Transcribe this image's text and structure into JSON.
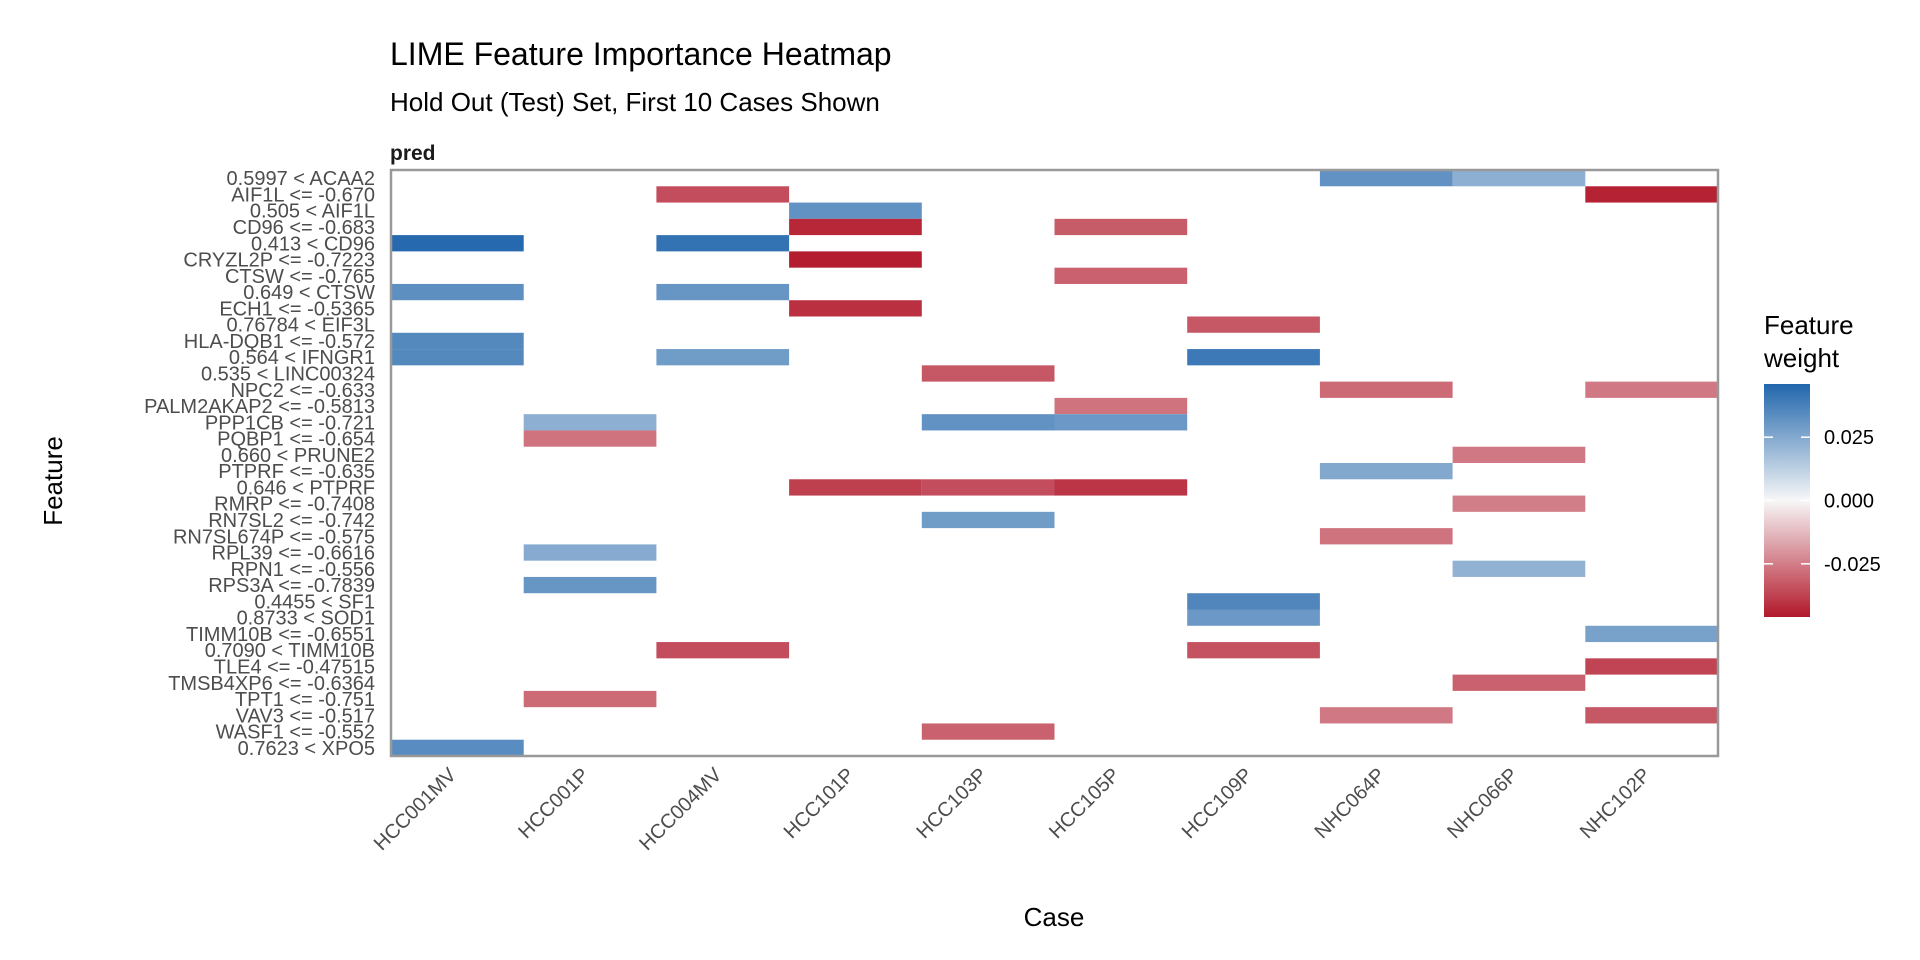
{
  "chart_data": {
    "type": "heatmap",
    "title": "LIME Feature Importance Heatmap",
    "subtitle": "Hold Out (Test) Set, First 10 Cases Shown",
    "facet_label": "pred",
    "xlabel": "Case",
    "ylabel": "Feature",
    "legend": {
      "title_lines": [
        "Feature",
        "weight"
      ],
      "ticks": [
        0.025,
        0.0,
        -0.025
      ],
      "tick_labels": [
        "0.025",
        "0.000",
        "-0.025"
      ],
      "range": [
        -0.046,
        0.046
      ],
      "colors": {
        "low": "#b2182b",
        "mid": "#f7f7f7",
        "high": "#2166ac"
      },
      "position": "right"
    },
    "cases": [
      "HCC001MV",
      "HCC001P",
      "HCC004MV",
      "HCC101P",
      "HCC103P",
      "HCC105P",
      "HCC109P",
      "NHC064P",
      "NHC066P",
      "NHC102P"
    ],
    "features": [
      "0.5997 < ACAA2",
      "AIF1L <= -0.670",
      "0.505 < AIF1L",
      "CD96 <= -0.683",
      "0.413 < CD96",
      "CRYZL2P <= -0.7223",
      "CTSW <= -0.765",
      "0.649 < CTSW",
      "ECH1 <= -0.5365",
      "0.76784 < EIF3L",
      "HLA-DQB1 <= -0.572",
      "0.564 < IFNGR1",
      "0.535 < LINC00324",
      "NPC2 <= -0.633",
      "PALM2AKAP2 <= -0.5813",
      "PPP1CB <= -0.721",
      "PQBP1 <= -0.654",
      "0.660 < PRUNE2",
      "PTPRF <= -0.635",
      "0.646 < PTPRF",
      "RMRP <= -0.7408",
      "RN7SL2 <= -0.742",
      "RN7SL674P <= -0.575",
      "RPL39 <= -0.6616",
      "RPN1 <= -0.556",
      "RPS3A <= -0.7839",
      "0.4455 < SF1",
      "0.8733 < SOD1",
      "TIMM10B <= -0.6551",
      "0.7090 < TIMM10B",
      "TLE4 <= -0.47515",
      "TMSB4XP6 <= -0.6364",
      "TPT1 <= -0.751",
      "VAV3 <= -0.517",
      "WASF1 <= -0.552",
      "0.7623 < XPO5"
    ],
    "cells": [
      {
        "case": "HCC001MV",
        "feature": "0.413 < CD96",
        "weight": 0.045
      },
      {
        "case": "HCC001MV",
        "feature": "0.649 < CTSW",
        "weight": 0.033
      },
      {
        "case": "HCC001MV",
        "feature": "HLA-DQB1 <= -0.572",
        "weight": 0.035
      },
      {
        "case": "HCC001MV",
        "feature": "0.564 < IFNGR1",
        "weight": 0.035
      },
      {
        "case": "HCC001MV",
        "feature": "0.7623 < XPO5",
        "weight": 0.034
      },
      {
        "case": "HCC001P",
        "feature": "PPP1CB <= -0.721",
        "weight": 0.023
      },
      {
        "case": "HCC001P",
        "feature": "PQBP1 <= -0.654",
        "weight": -0.027
      },
      {
        "case": "HCC001P",
        "feature": "RPL39 <= -0.6616",
        "weight": 0.024
      },
      {
        "case": "HCC001P",
        "feature": "RPS3A <= -0.7839",
        "weight": 0.031
      },
      {
        "case": "HCC001P",
        "feature": "TPT1 <= -0.751",
        "weight": -0.029
      },
      {
        "case": "HCC004MV",
        "feature": "AIF1L <= -0.670",
        "weight": -0.035
      },
      {
        "case": "HCC004MV",
        "feature": "0.413 < CD96",
        "weight": 0.042
      },
      {
        "case": "HCC004MV",
        "feature": "0.649 < CTSW",
        "weight": 0.031
      },
      {
        "case": "HCC004MV",
        "feature": "0.564 < IFNGR1",
        "weight": 0.029
      },
      {
        "case": "HCC004MV",
        "feature": "0.7090 < TIMM10B",
        "weight": -0.035
      },
      {
        "case": "HCC101P",
        "feature": "0.505 < AIF1L",
        "weight": 0.032
      },
      {
        "case": "HCC101P",
        "feature": "CD96 <= -0.683",
        "weight": -0.043
      },
      {
        "case": "HCC101P",
        "feature": "CRYZL2P <= -0.7223",
        "weight": -0.045
      },
      {
        "case": "HCC101P",
        "feature": "ECH1 <= -0.5365",
        "weight": -0.041
      },
      {
        "case": "HCC101P",
        "feature": "0.646 < PTPRF",
        "weight": -0.038
      },
      {
        "case": "HCC103P",
        "feature": "0.535 < LINC00324",
        "weight": -0.033
      },
      {
        "case": "HCC103P",
        "feature": "PPP1CB <= -0.721",
        "weight": 0.032
      },
      {
        "case": "HCC103P",
        "feature": "0.646 < PTPRF",
        "weight": -0.035
      },
      {
        "case": "HCC103P",
        "feature": "RN7SL2 <= -0.742",
        "weight": 0.029
      },
      {
        "case": "HCC103P",
        "feature": "WASF1 <= -0.552",
        "weight": -0.031
      },
      {
        "case": "HCC105P",
        "feature": "CD96 <= -0.683",
        "weight": -0.032
      },
      {
        "case": "HCC105P",
        "feature": "CTSW <= -0.765",
        "weight": -0.031
      },
      {
        "case": "HCC105P",
        "feature": "PALM2AKAP2 <= -0.5813",
        "weight": -0.027
      },
      {
        "case": "HCC105P",
        "feature": "PPP1CB <= -0.721",
        "weight": 0.03
      },
      {
        "case": "HCC105P",
        "feature": "0.646 < PTPRF",
        "weight": -0.04
      },
      {
        "case": "HCC109P",
        "feature": "0.76784 < EIF3L",
        "weight": -0.033
      },
      {
        "case": "HCC109P",
        "feature": "0.564 < IFNGR1",
        "weight": 0.04
      },
      {
        "case": "HCC109P",
        "feature": "0.4455 < SF1",
        "weight": 0.036
      },
      {
        "case": "HCC109P",
        "feature": "0.8733 < SOD1",
        "weight": 0.03
      },
      {
        "case": "HCC109P",
        "feature": "0.7090 < TIMM10B",
        "weight": -0.034
      },
      {
        "case": "NHC064P",
        "feature": "0.5997 < ACAA2",
        "weight": 0.032
      },
      {
        "case": "NHC064P",
        "feature": "NPC2 <= -0.633",
        "weight": -0.029
      },
      {
        "case": "NHC064P",
        "feature": "PTPRF <= -0.635",
        "weight": 0.025
      },
      {
        "case": "NHC064P",
        "feature": "RN7SL674P <= -0.575",
        "weight": -0.027
      },
      {
        "case": "NHC064P",
        "feature": "VAV3 <= -0.517",
        "weight": -0.026
      },
      {
        "case": "NHC066P",
        "feature": "0.5997 < ACAA2",
        "weight": 0.023
      },
      {
        "case": "NHC066P",
        "feature": "0.660 < PRUNE2",
        "weight": -0.026
      },
      {
        "case": "NHC066P",
        "feature": "RMRP <= -0.7408",
        "weight": -0.025
      },
      {
        "case": "NHC066P",
        "feature": "RPN1 <= -0.556",
        "weight": 0.022
      },
      {
        "case": "NHC066P",
        "feature": "TMSB4XP6 <= -0.6364",
        "weight": -0.031
      },
      {
        "case": "NHC102P",
        "feature": "AIF1L <= -0.670",
        "weight": -0.044
      },
      {
        "case": "NHC102P",
        "feature": "NPC2 <= -0.633",
        "weight": -0.026
      },
      {
        "case": "NHC102P",
        "feature": "TIMM10B <= -0.6551",
        "weight": 0.027
      },
      {
        "case": "NHC102P",
        "feature": "TLE4 <= -0.47515",
        "weight": -0.037
      },
      {
        "case": "NHC102P",
        "feature": "VAV3 <= -0.517",
        "weight": -0.033
      }
    ]
  }
}
